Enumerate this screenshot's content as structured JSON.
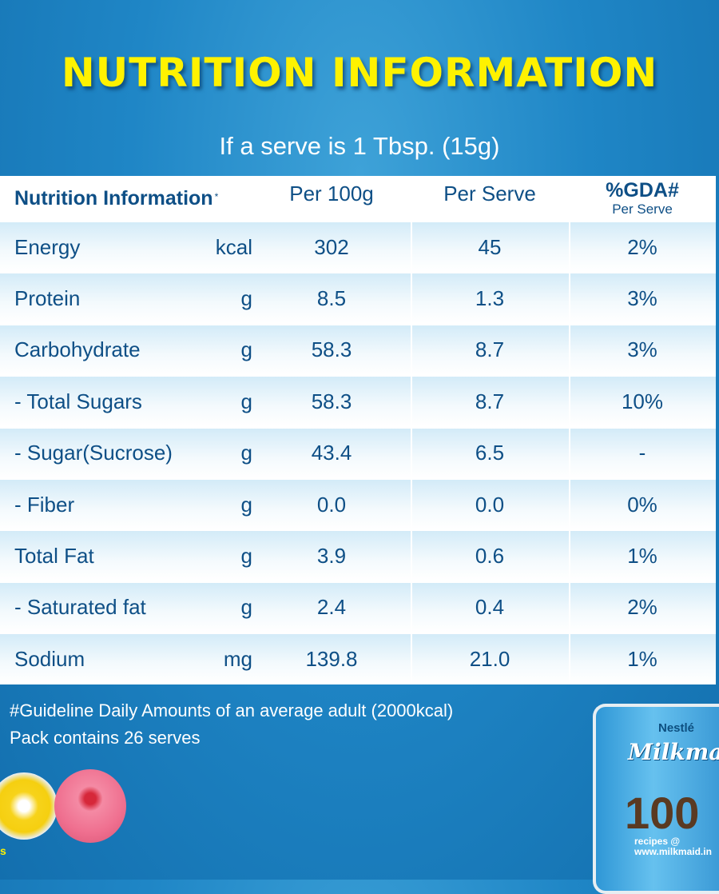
{
  "title": "NUTRITION INFORMATION",
  "subtitle": "If a serve is 1 Tbsp. (15g)",
  "table": {
    "header": {
      "label": "Nutrition Information",
      "label_mark": "*",
      "per100": "Per 100g",
      "perServe": "Per Serve",
      "gda": "%GDA#",
      "gda_sub": "Per Serve"
    },
    "rows": [
      {
        "name": "Energy",
        "unit": "kcal",
        "per100": "302",
        "perServe": "45",
        "gda": "2%"
      },
      {
        "name": "Protein",
        "unit": "g",
        "per100": "8.5",
        "perServe": "1.3",
        "gda": "3%"
      },
      {
        "name": "Carbohydrate",
        "unit": "g",
        "per100": "58.3",
        "perServe": "8.7",
        "gda": "3%"
      },
      {
        "name": "- Total Sugars",
        "unit": "g",
        "per100": "58.3",
        "perServe": "8.7",
        "gda": "10%"
      },
      {
        "name": "- Sugar(Sucrose)",
        "unit": "g",
        "per100": "43.4",
        "perServe": "6.5",
        "gda": "-"
      },
      {
        "name": "- Fiber",
        "unit": "g",
        "per100": "0.0",
        "perServe": "0.0",
        "gda": "0%"
      },
      {
        "name": "Total Fat",
        "unit": "g",
        "per100": "3.9",
        "perServe": "0.6",
        "gda": "1%"
      },
      {
        "name": "- Saturated fat",
        "unit": "g",
        "per100": "2.4",
        "perServe": "0.4",
        "gda": "2%"
      },
      {
        "name": "Sodium",
        "unit": "mg",
        "per100": "139.8",
        "perServe": "21.0",
        "gda": "1%"
      }
    ]
  },
  "footnotes": {
    "gda_note": "#Guideline Daily Amounts of an average adult (2000kcal)",
    "pack_note": "Pack contains 26 serves"
  },
  "product": {
    "brand": "Nestlé",
    "name": "Milkmaid",
    "badge": "100",
    "url_label": "recipes @",
    "url": "www.milkmaid.in",
    "edge_text": "s"
  },
  "colors": {
    "title": "#fff200",
    "text_dark": "#0e4f86",
    "background": "#1f86c6"
  }
}
